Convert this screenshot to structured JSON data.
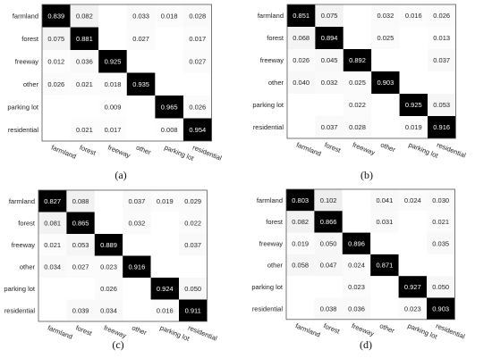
{
  "chart_data": [
    {
      "type": "heatmap",
      "subtitle": "(a)",
      "rows": [
        "farmland",
        "forest",
        "freeway",
        "other",
        "parking lot",
        "residential"
      ],
      "cols": [
        "farmland",
        "forest",
        "freeway",
        "other",
        "parking lot",
        "residential"
      ],
      "values": [
        [
          0.839,
          0.082,
          null,
          0.033,
          0.018,
          0.028
        ],
        [
          0.075,
          0.881,
          null,
          0.027,
          null,
          0.017
        ],
        [
          0.012,
          0.036,
          0.925,
          null,
          null,
          0.027
        ],
        [
          0.026,
          0.021,
          0.018,
          0.935,
          null,
          null
        ],
        [
          null,
          null,
          0.009,
          null,
          0.965,
          0.026
        ],
        [
          null,
          0.021,
          0.017,
          null,
          0.008,
          0.954
        ]
      ]
    },
    {
      "type": "heatmap",
      "subtitle": "(b)",
      "rows": [
        "farmland",
        "forest",
        "freeway",
        "other",
        "parking lot",
        "residential"
      ],
      "cols": [
        "farmland",
        "forest",
        "freeway",
        "other",
        "parking lot",
        "residential"
      ],
      "values": [
        [
          0.851,
          0.075,
          null,
          0.032,
          0.016,
          0.026
        ],
        [
          0.068,
          0.894,
          null,
          0.025,
          null,
          0.013
        ],
        [
          0.026,
          0.045,
          0.892,
          null,
          null,
          0.037
        ],
        [
          0.04,
          0.032,
          0.025,
          0.903,
          null,
          null
        ],
        [
          null,
          null,
          0.022,
          null,
          0.925,
          0.053
        ],
        [
          null,
          0.037,
          0.028,
          null,
          0.019,
          0.916
        ]
      ]
    },
    {
      "type": "heatmap",
      "subtitle": "(c)",
      "rows": [
        "farmland",
        "forest",
        "freeway",
        "other",
        "parking lot",
        "residential"
      ],
      "cols": [
        "farmland",
        "forest",
        "freeway",
        "other",
        "parking lot",
        "residential"
      ],
      "values": [
        [
          0.827,
          0.088,
          null,
          0.037,
          0.019,
          0.029
        ],
        [
          0.081,
          0.865,
          null,
          0.032,
          null,
          0.022
        ],
        [
          0.021,
          0.053,
          0.889,
          null,
          null,
          0.037
        ],
        [
          0.034,
          0.027,
          0.023,
          0.916,
          null,
          null
        ],
        [
          null,
          null,
          0.026,
          null,
          0.924,
          0.05
        ],
        [
          null,
          0.039,
          0.034,
          null,
          0.016,
          0.911
        ]
      ]
    },
    {
      "type": "heatmap",
      "subtitle": "(d)",
      "rows": [
        "farmland",
        "forest",
        "freeway",
        "other",
        "parking lot",
        "residential"
      ],
      "cols": [
        "farmland",
        "forest",
        "freeway",
        "other",
        "parking lot",
        "residential"
      ],
      "values": [
        [
          0.803,
          0.102,
          null,
          0.041,
          0.024,
          0.03
        ],
        [
          0.082,
          0.866,
          null,
          0.031,
          null,
          0.021
        ],
        [
          0.019,
          0.05,
          0.896,
          null,
          null,
          0.035
        ],
        [
          0.058,
          0.047,
          0.024,
          0.871,
          null,
          null
        ],
        [
          null,
          null,
          0.023,
          null,
          0.927,
          0.05
        ],
        [
          null,
          0.038,
          0.036,
          null,
          0.023,
          0.903
        ]
      ]
    }
  ]
}
